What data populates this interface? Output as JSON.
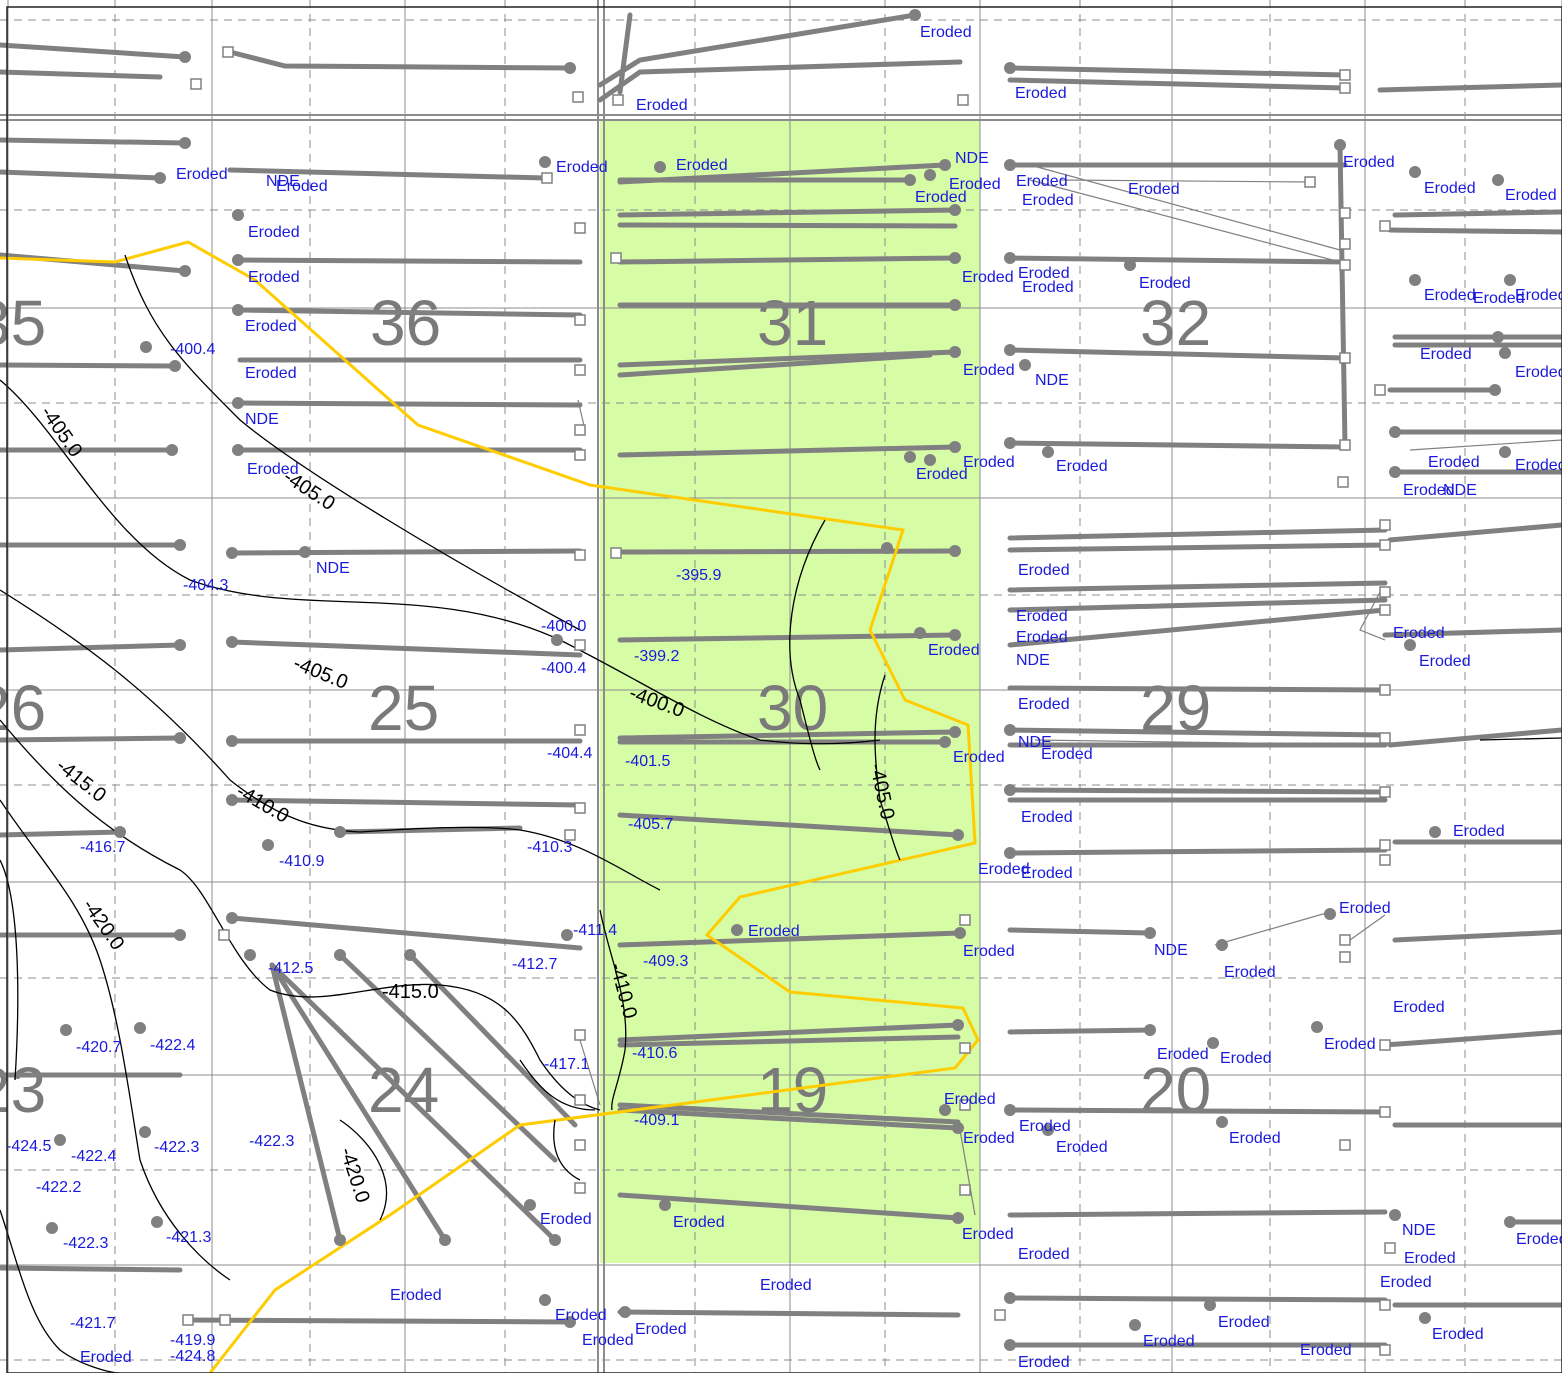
{
  "map": {
    "colors": {
      "highlight_fill": "#d6fca6",
      "boundary": "#ffcc00",
      "wellbore": "#808080",
      "label": "#1a1adc",
      "contour": "#000000",
      "grid": "#8c8c8c",
      "section_number": "#7a7a7a"
    },
    "sections": [
      {
        "id": "s35",
        "number": "35"
      },
      {
        "id": "s36",
        "number": "36"
      },
      {
        "id": "s31",
        "number": "31"
      },
      {
        "id": "s32",
        "number": "32"
      },
      {
        "id": "s26",
        "number": "26"
      },
      {
        "id": "s25",
        "number": "25"
      },
      {
        "id": "s30",
        "number": "30"
      },
      {
        "id": "s29",
        "number": "29"
      },
      {
        "id": "s23",
        "number": "23"
      },
      {
        "id": "s24",
        "number": "24"
      },
      {
        "id": "s19",
        "number": "19"
      },
      {
        "id": "s20",
        "number": "20"
      }
    ],
    "contours": [
      {
        "id": "c1",
        "value": "-400.0"
      },
      {
        "id": "c2",
        "value": "-405.0"
      },
      {
        "id": "c3",
        "value": "-405.0"
      },
      {
        "id": "c4",
        "value": "-410.0"
      },
      {
        "id": "c5",
        "value": "-415.0"
      },
      {
        "id": "c6",
        "value": "-420.0"
      },
      {
        "id": "c7",
        "value": "-405.0"
      },
      {
        "id": "c8",
        "value": "-410.0"
      },
      {
        "id": "c9",
        "value": "-415.0"
      },
      {
        "id": "c10",
        "value": "-420.0"
      },
      {
        "id": "c11",
        "value": "-405.0"
      }
    ],
    "labels": [
      {
        "id": "l1",
        "text": "Eroded"
      },
      {
        "id": "l2",
        "text": "Eroded"
      },
      {
        "id": "l3",
        "text": "Eroded"
      },
      {
        "id": "l4",
        "text": "Eroded"
      },
      {
        "id": "l5",
        "text": "Eroded"
      },
      {
        "id": "l6",
        "text": "NDE"
      },
      {
        "id": "l7",
        "text": "Eroded"
      },
      {
        "id": "l8",
        "text": "Eroded"
      },
      {
        "id": "l9",
        "text": "NDE"
      },
      {
        "id": "l10",
        "text": "Eroded"
      },
      {
        "id": "l11",
        "text": "Eroded"
      },
      {
        "id": "l12",
        "text": "Eroded"
      },
      {
        "id": "l13",
        "text": "Eroded"
      },
      {
        "id": "l14",
        "text": "Eroded"
      },
      {
        "id": "l15",
        "text": "Eroded"
      },
      {
        "id": "l16",
        "text": "Eroded"
      },
      {
        "id": "l17",
        "text": "Eroded"
      },
      {
        "id": "l18",
        "text": "Eroded"
      },
      {
        "id": "l19",
        "text": "Eroded"
      },
      {
        "id": "l20",
        "text": "Eroded"
      },
      {
        "id": "l21",
        "text": "Eroded"
      },
      {
        "id": "l22",
        "text": "Eroded"
      },
      {
        "id": "l23",
        "text": "Eroded"
      },
      {
        "id": "l24",
        "text": "Eroded"
      },
      {
        "id": "l25",
        "text": "Eroded"
      },
      {
        "id": "l26",
        "text": "Eroded"
      },
      {
        "id": "l27",
        "text": "Eroded"
      },
      {
        "id": "l28",
        "text": "Eroded"
      },
      {
        "id": "l29",
        "text": "Eroded"
      },
      {
        "id": "l30",
        "text": "NDE"
      },
      {
        "id": "l31",
        "text": "Eroded"
      },
      {
        "id": "l32",
        "text": "Eroded"
      },
      {
        "id": "l33",
        "text": "NDE"
      },
      {
        "id": "l34",
        "text": "Eroded"
      },
      {
        "id": "l35",
        "text": "Eroded"
      },
      {
        "id": "l36",
        "text": "Eroded"
      },
      {
        "id": "l37",
        "text": "Eroded"
      },
      {
        "id": "l38",
        "text": "Eroded"
      },
      {
        "id": "l39",
        "text": "Eroded"
      },
      {
        "id": "l40",
        "text": "Eroded"
      },
      {
        "id": "l41",
        "text": "NDE"
      },
      {
        "id": "l42",
        "text": "NDE"
      },
      {
        "id": "l43",
        "text": "Eroded"
      },
      {
        "id": "l44",
        "text": "Eroded"
      },
      {
        "id": "l45",
        "text": "Eroded"
      },
      {
        "id": "l46",
        "text": "NDE"
      },
      {
        "id": "l47",
        "text": "Eroded"
      },
      {
        "id": "l48",
        "text": "Eroded"
      },
      {
        "id": "l49",
        "text": "Eroded"
      },
      {
        "id": "l50",
        "text": "Eroded"
      },
      {
        "id": "l51",
        "text": "NDE"
      },
      {
        "id": "l52",
        "text": "Eroded"
      },
      {
        "id": "l53",
        "text": "Eroded"
      },
      {
        "id": "l54",
        "text": "Eroded"
      },
      {
        "id": "l55",
        "text": "Eroded"
      },
      {
        "id": "l56",
        "text": "Eroded"
      },
      {
        "id": "l57",
        "text": "Eroded"
      },
      {
        "id": "l58",
        "text": "Eroded"
      },
      {
        "id": "l59",
        "text": "NDE"
      },
      {
        "id": "l60",
        "text": "Eroded"
      },
      {
        "id": "l61",
        "text": "Eroded"
      },
      {
        "id": "l62",
        "text": "Eroded"
      },
      {
        "id": "l63",
        "text": "Eroded"
      },
      {
        "id": "l64",
        "text": "Eroded"
      },
      {
        "id": "l65",
        "text": "Eroded"
      },
      {
        "id": "l66",
        "text": "Eroded"
      },
      {
        "id": "l67",
        "text": "Eroded"
      },
      {
        "id": "l68",
        "text": "Eroded"
      },
      {
        "id": "l69",
        "text": "Eroded"
      },
      {
        "id": "l70",
        "text": "Eroded"
      },
      {
        "id": "l71",
        "text": "Eroded"
      },
      {
        "id": "l72",
        "text": "Eroded"
      },
      {
        "id": "l73",
        "text": "NDE"
      },
      {
        "id": "l74",
        "text": "Eroded"
      },
      {
        "id": "l75",
        "text": "Eroded"
      },
      {
        "id": "l76",
        "text": "Eroded"
      },
      {
        "id": "l77",
        "text": "Eroded"
      },
      {
        "id": "l78",
        "text": "Eroded"
      },
      {
        "id": "l79",
        "text": "Eroded"
      },
      {
        "id": "l80",
        "text": "Eroded"
      },
      {
        "id": "l81",
        "text": "Eroded"
      },
      {
        "id": "l82",
        "text": "Eroded"
      },
      {
        "id": "l83",
        "text": "Eroded"
      },
      {
        "id": "l84",
        "text": "Eroded"
      },
      {
        "id": "l85",
        "text": "Eroded"
      },
      {
        "id": "l86",
        "text": "Eroded"
      },
      {
        "id": "l87",
        "text": "Eroded"
      },
      {
        "id": "l88",
        "text": "Eroded"
      },
      {
        "id": "l89",
        "text": "Eroded"
      },
      {
        "id": "l90",
        "text": "Eroded"
      },
      {
        "id": "v1",
        "text": "-400.4"
      },
      {
        "id": "v2",
        "text": "-404.3"
      },
      {
        "id": "v3",
        "text": "-395.9"
      },
      {
        "id": "v4",
        "text": "-400.0"
      },
      {
        "id": "v5",
        "text": "-400.4"
      },
      {
        "id": "v6",
        "text": "-399.2"
      },
      {
        "id": "v7",
        "text": "-404.4"
      },
      {
        "id": "v8",
        "text": "-401.5"
      },
      {
        "id": "v9",
        "text": "-405.7"
      },
      {
        "id": "v10",
        "text": "-410.3"
      },
      {
        "id": "v11",
        "text": "-416.7"
      },
      {
        "id": "v12",
        "text": "-410.9"
      },
      {
        "id": "v13",
        "text": "-411.4"
      },
      {
        "id": "v14",
        "text": "-412.7"
      },
      {
        "id": "v15",
        "text": "-409.3"
      },
      {
        "id": "v16",
        "text": "-412.5"
      },
      {
        "id": "v17",
        "text": "-420.7"
      },
      {
        "id": "v18",
        "text": "-422.4"
      },
      {
        "id": "v19",
        "text": "-417.1"
      },
      {
        "id": "v20",
        "text": "-410.6"
      },
      {
        "id": "v21",
        "text": "-409.1"
      },
      {
        "id": "v22",
        "text": "-424.5"
      },
      {
        "id": "v23",
        "text": "-422.4"
      },
      {
        "id": "v24",
        "text": "-422.3"
      },
      {
        "id": "v25",
        "text": "-422.3"
      },
      {
        "id": "v26",
        "text": "-422.2"
      },
      {
        "id": "v27",
        "text": "-422.3"
      },
      {
        "id": "v28",
        "text": "-421.3"
      },
      {
        "id": "v29",
        "text": "-421.7"
      },
      {
        "id": "v30",
        "text": "-419.9"
      },
      {
        "id": "v31",
        "text": "-424.8"
      }
    ]
  }
}
